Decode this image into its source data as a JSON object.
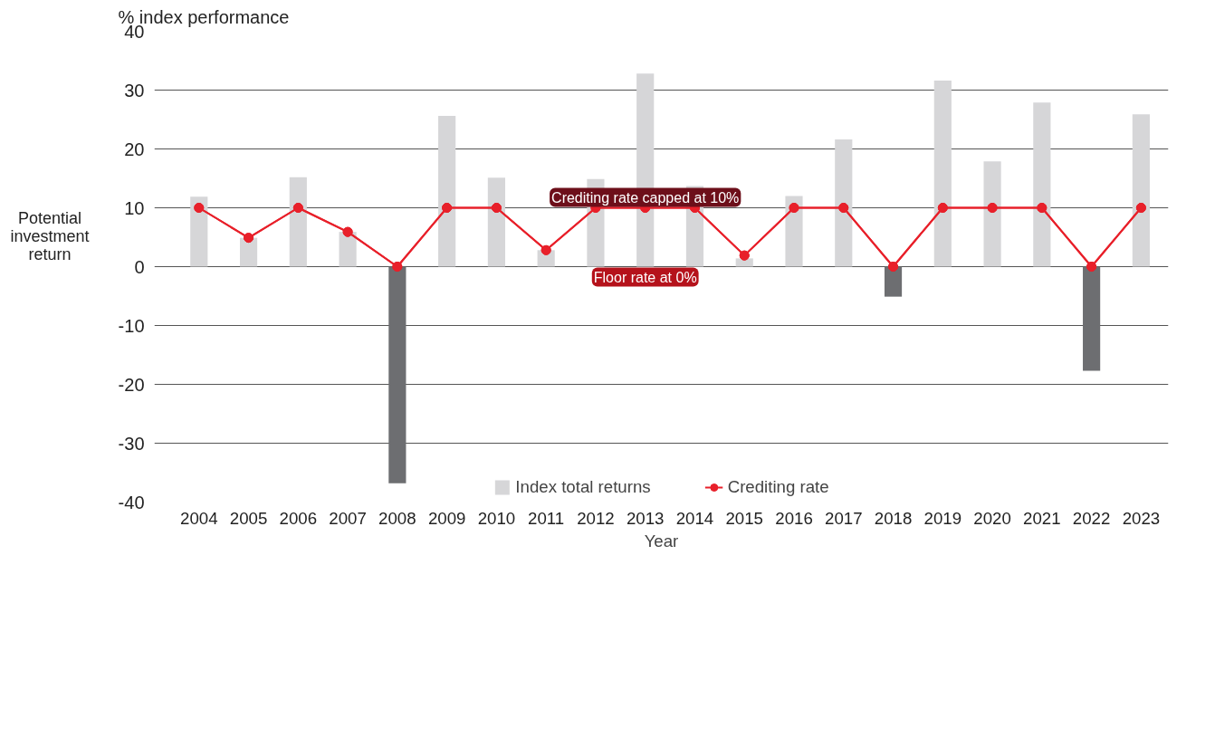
{
  "chart_data": {
    "type": "bar",
    "ylabel": "% index performance",
    "xlabel": "Year",
    "categories": [
      "2004",
      "2005",
      "2006",
      "2007",
      "2008",
      "2009",
      "2010",
      "2011",
      "2012",
      "2013",
      "2014",
      "2015",
      "2016",
      "2017",
      "2018",
      "2019",
      "2020",
      "2021",
      "2022",
      "2023"
    ],
    "series": [
      {
        "name": "Index total returns",
        "colors": [
          "#d6d6d8",
          "#d6d6d8",
          "#d6d6d8",
          "#d6d6d8",
          "#6d6e71",
          "#d6d6d8",
          "#d6d6d8",
          "#d6d6d8",
          "#d6d6d8",
          "#d6d6d8",
          "#d6d6d8",
          "#d6d6d8",
          "#d6d6d8",
          "#d6d6d8",
          "#6d6e71",
          "#d6d6d8",
          "#d6d6d8",
          "#d6d6d8",
          "#6d6e71",
          "#d6d6d8"
        ],
        "values": [
          11.9,
          4.9,
          15.2,
          5.9,
          -36.8,
          25.6,
          15.1,
          2.8,
          14.9,
          32.8,
          13.7,
          1.4,
          12.0,
          21.6,
          -5.1,
          31.6,
          17.9,
          27.9,
          -17.7,
          25.9
        ]
      },
      {
        "name": "Crediting rate",
        "type": "line",
        "color": "#e8202a",
        "values": [
          10,
          4.9,
          10,
          5.9,
          0,
          10,
          10,
          2.8,
          10,
          10,
          10,
          1.9,
          10,
          10,
          0,
          10,
          10,
          10,
          0,
          10
        ]
      }
    ],
    "ylim": [
      -40,
      40
    ],
    "yticks": [
      -40,
      -30,
      -20,
      -10,
      0,
      10,
      20,
      30,
      40
    ],
    "grid": "y",
    "legend": "bottom",
    "marker": "circle",
    "annotations": [
      {
        "text": "Crediting rate capped at 10%",
        "x": "2013",
        "y": 10
      },
      {
        "text": "Floor rate at 0%",
        "x": "2013",
        "y": 0
      },
      "Potential investment return"
    ]
  }
}
